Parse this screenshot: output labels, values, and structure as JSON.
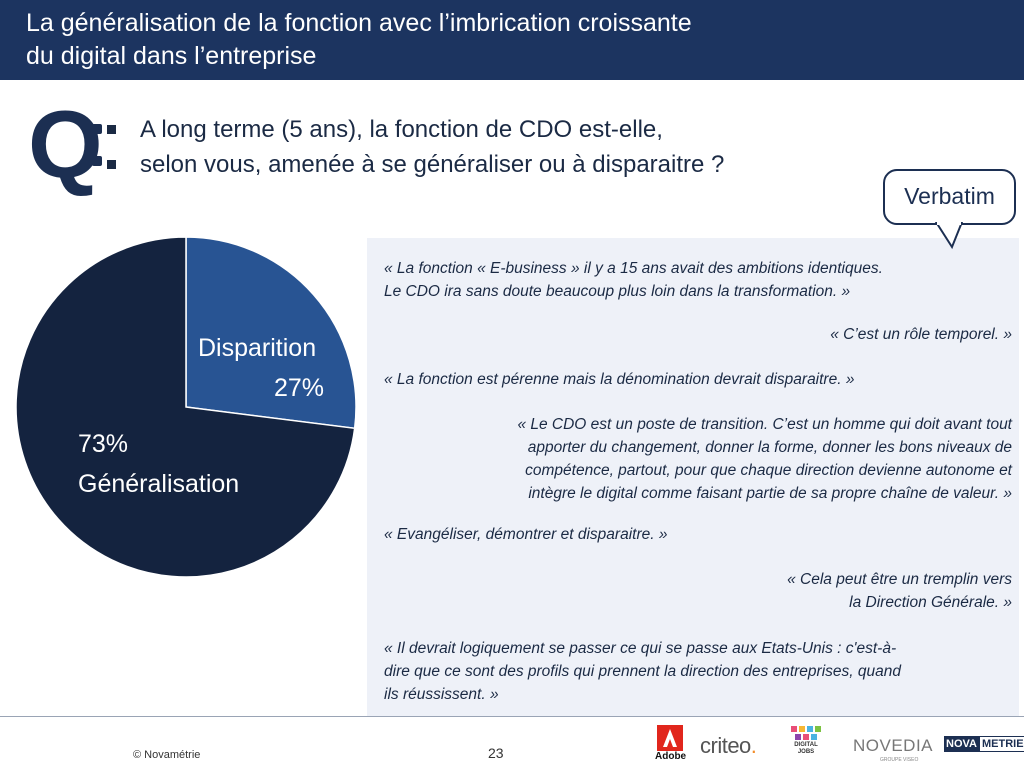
{
  "header": {
    "title_line1": "La généralisation de la fonction avec l’imbrication croissante",
    "title_line2": "du digital dans l’entreprise"
  },
  "question": {
    "letter": "Q",
    "line1": "A long terme (5 ans), la fonction de CDO est-elle,",
    "line2": "selon vous, amenée à se généraliser ou à disparaitre ?"
  },
  "callout": {
    "label": "Verbatim"
  },
  "chart_data": {
    "type": "pie",
    "slices": [
      {
        "label": "Disparition",
        "value": 27,
        "value_label": "27%",
        "color": "#285493"
      },
      {
        "label": "Généralisation",
        "value": 73,
        "value_label": "73%",
        "color": "#14233f"
      }
    ],
    "start_angle_deg": 0,
    "direction": "clockwise"
  },
  "verbatims": [
    {
      "align": "left",
      "lines": [
        "« La fonction « E-business » il y a 15 ans avait des ambitions identiques.",
        "Le CDO ira sans doute beaucoup plus loin dans la transformation. »"
      ]
    },
    {
      "align": "right",
      "lines": [
        "« C’est un rôle temporel. »"
      ]
    },
    {
      "align": "left",
      "lines": [
        "« La fonction est pérenne mais la dénomination devrait disparaitre. »"
      ]
    },
    {
      "align": "right",
      "lines": [
        "« Le CDO est un poste de transition. C’est  un homme qui doit avant tout",
        "apporter du changement, donner la forme, donner les bons niveaux de",
        "compétence, partout, pour que chaque direction devienne autonome et",
        "intègre le digital comme faisant partie de sa propre chaîne de valeur. »"
      ]
    },
    {
      "align": "left",
      "lines": [
        "« Evangéliser, démontrer et disparaitre. »"
      ]
    },
    {
      "align": "right",
      "lines": [
        "« Cela peut être un tremplin vers",
        "la Direction Générale. »"
      ]
    },
    {
      "align": "left",
      "lines": [
        "« Il devrait logiquement se passer ce qui se passe aux Etats-Unis : c'est-à-",
        "dire que ce sont des profils qui prennent la direction des entreprises, quand",
        "ils réussissent. »"
      ]
    }
  ],
  "footer": {
    "copyright": "© Novamétrie",
    "page_number": "23",
    "logos": {
      "adobe": "Adobe",
      "criteo": "criteo",
      "criteo_dot": ".",
      "digital_jobs": "DIGITAL JOBS",
      "novedia": "NOVEDIA",
      "novedia_sub": "GROUPE VISEO",
      "novametrie_a": "NOVA",
      "novametrie_b": "METRIE"
    },
    "logo_icons": [
      "adobe-logo-icon",
      "digital-jobs-logo-icon"
    ]
  }
}
